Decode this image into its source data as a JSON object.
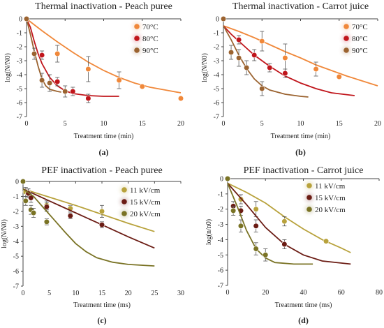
{
  "chart_data": [
    {
      "type": "scatter",
      "panel_label": "(a)",
      "title": "Thermal inactivation - Peach puree",
      "xlabel": "Treatment time (min)",
      "ylabel": "log(N/N0)",
      "xlim": [
        0,
        20
      ],
      "ylim": [
        -7,
        0
      ],
      "xticks": [
        0,
        5,
        10,
        15,
        20
      ],
      "yticks": [
        -7,
        -6,
        -5,
        -4,
        -3,
        -2,
        -1,
        0
      ],
      "legend_position": "top-right",
      "series": [
        {
          "name": "70°C",
          "color": "#F0883A",
          "points": [
            [
              0,
              0,
              0
            ],
            [
              4,
              -2.5,
              0.6
            ],
            [
              8,
              -3.6,
              0.9
            ],
            [
              12,
              -4.4,
              0.6
            ],
            [
              15,
              -4.85,
              0
            ],
            [
              20,
              -5.7,
              0
            ]
          ],
          "fit": [
            [
              0,
              0
            ],
            [
              2,
              -0.85
            ],
            [
              4,
              -1.65
            ],
            [
              6,
              -2.4
            ],
            [
              8,
              -3.1
            ],
            [
              10,
              -3.7
            ],
            [
              12,
              -4.2
            ],
            [
              14,
              -4.6
            ],
            [
              16,
              -4.9
            ],
            [
              18,
              -5.1
            ],
            [
              20,
              -5.3
            ]
          ]
        },
        {
          "name": "80°C",
          "color": "#C0151B",
          "points": [
            [
              0,
              0,
              0
            ],
            [
              2,
              -2.6,
              0.3
            ],
            [
              4,
              -4.5,
              0.3
            ],
            [
              6,
              -5.2,
              0.3
            ],
            [
              8,
              -5.7,
              0.3
            ]
          ],
          "fit": [
            [
              0,
              0
            ],
            [
              0.5,
              -0.6
            ],
            [
              1,
              -1.6
            ],
            [
              1.5,
              -2.5
            ],
            [
              2,
              -3.2
            ],
            [
              3,
              -4.2
            ],
            [
              4,
              -4.8
            ],
            [
              5,
              -5.15
            ],
            [
              6,
              -5.35
            ],
            [
              8,
              -5.5
            ],
            [
              10,
              -5.55
            ],
            [
              12,
              -5.55
            ]
          ]
        },
        {
          "name": "90°C",
          "color": "#9B6330",
          "points": [
            [
              0,
              0,
              0
            ],
            [
              1,
              -2.5,
              0.4
            ],
            [
              2,
              -4.4,
              0.5
            ],
            [
              3,
              -4.6,
              0.6
            ],
            [
              5,
              -5.2,
              0.4
            ]
          ],
          "fit": [
            [
              0,
              0
            ],
            [
              0.5,
              -1.1
            ],
            [
              1,
              -2.3
            ],
            [
              1.5,
              -3.4
            ],
            [
              2,
              -4.3
            ],
            [
              2.5,
              -4.8
            ],
            [
              3,
              -5.05
            ],
            [
              4,
              -5.2
            ],
            [
              4.5,
              -5.25
            ]
          ]
        }
      ]
    },
    {
      "type": "scatter",
      "panel_label": "(b)",
      "title": "Thermal inactivation - Carrot juice",
      "xlabel": "Treatment time (min)",
      "ylabel": "log(N/N0)",
      "xlim": [
        0,
        20
      ],
      "ylim": [
        -7,
        0
      ],
      "xticks": [
        0,
        5,
        10,
        15,
        20
      ],
      "yticks": [
        -7,
        -6,
        -5,
        -4,
        -3,
        -2,
        -1,
        0
      ],
      "legend_position": "top-right",
      "series": [
        {
          "name": "70°C",
          "color": "#F0883A",
          "points": [
            [
              0,
              0,
              0
            ],
            [
              5,
              -1.6,
              0.7
            ],
            [
              8,
              -2.8,
              1.0
            ],
            [
              12,
              -3.6,
              0.5
            ],
            [
              15,
              -4.15,
              0
            ]
          ],
          "fit": [
            [
              0,
              -0.5
            ],
            [
              2,
              -0.9
            ],
            [
              4,
              -1.35
            ],
            [
              6,
              -1.85
            ],
            [
              8,
              -2.35
            ],
            [
              10,
              -2.8
            ],
            [
              12,
              -3.3
            ],
            [
              14,
              -3.7
            ],
            [
              16,
              -4.1
            ],
            [
              18,
              -4.45
            ],
            [
              20,
              -4.8
            ]
          ]
        },
        {
          "name": "80°C",
          "color": "#C0151B",
          "points": [
            [
              0,
              0,
              0
            ],
            [
              2,
              -1.5,
              0.3
            ],
            [
              4,
              -2.6,
              0.4
            ],
            [
              6,
              -3.5,
              0.3
            ],
            [
              8,
              -3.9,
              0.3
            ]
          ],
          "fit": [
            [
              0,
              -0.5
            ],
            [
              1,
              -1.1
            ],
            [
              2,
              -1.6
            ],
            [
              3,
              -2.1
            ],
            [
              4,
              -2.6
            ],
            [
              6,
              -3.4
            ],
            [
              8,
              -4.1
            ],
            [
              10,
              -4.6
            ],
            [
              12,
              -5.0
            ],
            [
              14,
              -5.3
            ],
            [
              17,
              -5.5
            ]
          ]
        },
        {
          "name": "90°C",
          "color": "#9B6330",
          "points": [
            [
              0,
              0,
              0
            ],
            [
              1,
              -2.4,
              0.5
            ],
            [
              2,
              -2.8,
              0.6
            ],
            [
              3,
              -3.5,
              0.5
            ],
            [
              5,
              -5.0,
              0.5
            ]
          ],
          "fit": [
            [
              0,
              -0.5
            ],
            [
              1,
              -1.5
            ],
            [
              2,
              -2.6
            ],
            [
              3,
              -3.55
            ],
            [
              4,
              -4.3
            ],
            [
              5,
              -4.8
            ],
            [
              6,
              -5.1
            ],
            [
              8,
              -5.4
            ],
            [
              10,
              -5.55
            ],
            [
              11,
              -5.6
            ]
          ]
        }
      ]
    },
    {
      "type": "scatter",
      "panel_label": "(c)",
      "title": "PEF inactivation - Peach puree",
      "xlabel": "Treatment time (ms)",
      "ylabel": "log(N/N0)",
      "xlim": [
        0,
        30
      ],
      "ylim": [
        -7,
        0
      ],
      "xticks": [
        0,
        5,
        10,
        15,
        20,
        25,
        30
      ],
      "yticks": [
        -7,
        -6,
        -5,
        -4,
        -3,
        -2,
        -1,
        0
      ],
      "legend_position": "top-right",
      "series": [
        {
          "name": "11 kV/cm",
          "color": "#B8A23C",
          "points": [
            [
              0,
              0,
              0
            ],
            [
              0.5,
              -0.7,
              0.3
            ],
            [
              1,
              -0.8,
              0.3
            ],
            [
              4.5,
              -1.6,
              0.3
            ],
            [
              9,
              -1.8,
              0.2
            ],
            [
              15,
              -2.0,
              0.4
            ]
          ],
          "fit": [
            [
              0,
              -0.5
            ],
            [
              5,
              -1.05
            ],
            [
              10,
              -1.6
            ],
            [
              15,
              -2.2
            ],
            [
              20,
              -2.8
            ],
            [
              25,
              -3.35
            ]
          ]
        },
        {
          "name": "15 kV/cm",
          "color": "#6B1C14",
          "points": [
            [
              0,
              0,
              0
            ],
            [
              1,
              -0.8,
              0.3
            ],
            [
              1.5,
              -1.1,
              0.3
            ],
            [
              4.5,
              -1.7,
              0.3
            ],
            [
              9,
              -2.3,
              0.2
            ],
            [
              15,
              -2.9,
              0.2
            ]
          ],
          "fit": [
            [
              0,
              -0.5
            ],
            [
              5,
              -1.3
            ],
            [
              10,
              -2.1
            ],
            [
              15,
              -2.9
            ],
            [
              20,
              -3.7
            ],
            [
              25,
              -4.45
            ]
          ]
        },
        {
          "name": "20 kV/cm",
          "color": "#7A7325",
          "points": [
            [
              0,
              0,
              0
            ],
            [
              0.5,
              -1.3,
              0.3
            ],
            [
              1.5,
              -1.9,
              0.3
            ],
            [
              2,
              -2.1,
              0.3
            ],
            [
              4.5,
              -2.7,
              0.2
            ]
          ],
          "fit": [
            [
              0,
              -0.5
            ],
            [
              2,
              -1.0
            ],
            [
              4,
              -1.8
            ],
            [
              6,
              -2.6
            ],
            [
              8,
              -3.4
            ],
            [
              10,
              -4.15
            ],
            [
              12,
              -4.7
            ],
            [
              14,
              -5.1
            ],
            [
              17,
              -5.4
            ],
            [
              20,
              -5.55
            ],
            [
              25,
              -5.65
            ]
          ]
        }
      ]
    },
    {
      "type": "scatter",
      "panel_label": "(d)",
      "title": "PEF inactivation - Carrot juice",
      "xlabel": "Treatment time (ms)",
      "ylabel": "log(n/n0)",
      "xlim": [
        0,
        80
      ],
      "ylim": [
        -7,
        0
      ],
      "xticks": [
        0,
        20,
        40,
        60,
        80
      ],
      "yticks": [
        -7,
        -6,
        -5,
        -4,
        -3,
        -2,
        -1,
        0
      ],
      "legend_position": "top-right",
      "series": [
        {
          "name": "11 kV/cm",
          "color": "#B8A23C",
          "points": [
            [
              0,
              0,
              0
            ],
            [
              7,
              -1.35,
              0.3
            ],
            [
              15,
              -2.0,
              0.5
            ],
            [
              30,
              -2.8,
              0.3
            ],
            [
              52,
              -4.1,
              0
            ]
          ],
          "fit": [
            [
              0,
              -0.3
            ],
            [
              10,
              -0.9
            ],
            [
              20,
              -1.6
            ],
            [
              30,
              -2.5
            ],
            [
              40,
              -3.3
            ],
            [
              50,
              -4.0
            ],
            [
              60,
              -4.55
            ],
            [
              65,
              -4.85
            ]
          ]
        },
        {
          "name": "15 kV/cm",
          "color": "#6B1C14",
          "points": [
            [
              0,
              0,
              0
            ],
            [
              3,
              -1.8,
              0.3
            ],
            [
              7,
              -2.1,
              0.3
            ],
            [
              15,
              -3.1,
              0.4
            ],
            [
              30,
              -4.3,
              0.3
            ]
          ],
          "fit": [
            [
              0,
              -0.3
            ],
            [
              10,
              -1.7
            ],
            [
              20,
              -3.2
            ],
            [
              30,
              -4.3
            ],
            [
              40,
              -5.0
            ],
            [
              50,
              -5.4
            ],
            [
              65,
              -5.6
            ]
          ]
        },
        {
          "name": "20 kV/cm",
          "color": "#7A7325",
          "points": [
            [
              0,
              0,
              0
            ],
            [
              3,
              -2.1,
              0.3
            ],
            [
              7,
              -3.1,
              0.4
            ],
            [
              15,
              -4.6,
              0.4
            ],
            [
              20,
              -5.0,
              0.4
            ]
          ],
          "fit": [
            [
              0,
              -0.3
            ],
            [
              5,
              -1.8
            ],
            [
              10,
              -3.4
            ],
            [
              15,
              -4.6
            ],
            [
              20,
              -5.2
            ],
            [
              25,
              -5.5
            ],
            [
              35,
              -5.6
            ],
            [
              45,
              -5.6
            ]
          ]
        }
      ]
    }
  ]
}
